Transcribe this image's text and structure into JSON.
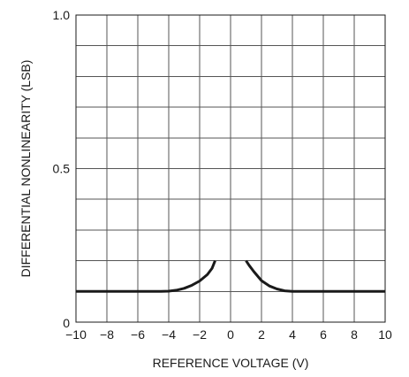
{
  "chart_data": {
    "type": "line",
    "title": "",
    "xlabel": "REFERENCE VOLTAGE (V)",
    "ylabel": "DIFFERENTIAL NONLINEARITY (LSB)",
    "xlim": [
      -10,
      10
    ],
    "ylim": [
      0,
      1.0
    ],
    "x_ticks": [
      -10,
      -8,
      -6,
      -4,
      -2,
      0,
      2,
      4,
      6,
      8,
      10
    ],
    "x_tick_labels": [
      "−10",
      "−8",
      "−6",
      "−4",
      "−2",
      "0",
      "2",
      "4",
      "6",
      "8",
      "10"
    ],
    "y_ticks": [
      0,
      0.5,
      1.0
    ],
    "y_tick_labels": [
      "0",
      "0.5",
      "1.0"
    ],
    "x_grid_step": 2,
    "y_grid_step": 0.1,
    "grid": true,
    "legend": "none",
    "series": [
      {
        "segment": "negative",
        "x": [
          -10,
          -8,
          -6,
          -4.5,
          -4,
          -3.5,
          -3,
          -2.5,
          -2,
          -1.5,
          -1.2,
          -1
        ],
        "y": [
          0.1,
          0.1,
          0.1,
          0.1,
          0.101,
          0.104,
          0.11,
          0.12,
          0.134,
          0.155,
          0.175,
          0.2
        ]
      },
      {
        "segment": "positive",
        "x": [
          1,
          1.2,
          1.5,
          2,
          2.5,
          3,
          3.5,
          4,
          4.5,
          6,
          8,
          10
        ],
        "y": [
          0.2,
          0.185,
          0.165,
          0.135,
          0.118,
          0.108,
          0.102,
          0.1,
          0.1,
          0.1,
          0.1,
          0.1
        ]
      }
    ]
  }
}
